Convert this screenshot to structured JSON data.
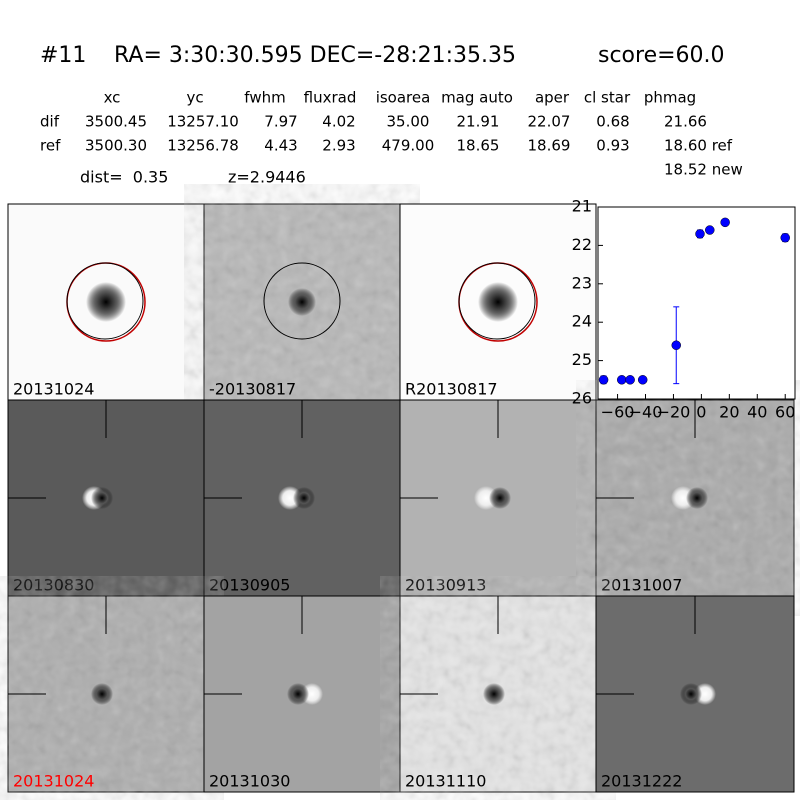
{
  "header": {
    "id": "#11",
    "coords": "RA= 3:30:30.595 DEC=-28:21:35.35",
    "score": "score=60.0"
  },
  "table": {
    "columns": [
      "xc",
      "yc",
      "fwhm",
      "fluxrad",
      "isoarea",
      "mag auto",
      "aper",
      "cl star",
      "phmag"
    ],
    "rows": [
      [
        "dif",
        "3500.45",
        "13257.10",
        "7.97",
        "4.02",
        "35.00",
        "21.91",
        "22.07",
        "0.68",
        "21.66"
      ],
      [
        "ref",
        "3500.30",
        "13256.78",
        "4.43",
        "2.93",
        "479.00",
        "18.65",
        "18.69",
        "0.93",
        "18.60 ref"
      ]
    ],
    "note": "18.52 new"
  },
  "distance": {
    "dist": "dist=  0.35",
    "redshift": "z=2.9446"
  },
  "stamps": [
    {
      "label": "20131024"
    },
    {
      "label": "-20130817"
    },
    {
      "label": "R20130817"
    },
    {
      "label": "20130830"
    },
    {
      "label": "20130905"
    },
    {
      "label": "20130913"
    },
    {
      "label": "20131007"
    },
    {
      "label": "20131024",
      "label_color": "#ff0000"
    },
    {
      "label": "20131030"
    },
    {
      "label": "20131110"
    },
    {
      "label": "20131222"
    }
  ],
  "chart_data": {
    "type": "scatter",
    "x": [
      -70,
      -57,
      -51,
      -42,
      -18,
      -1,
      6,
      17,
      60
    ],
    "values": [
      25.5,
      25.5,
      25.5,
      25.5,
      24.6,
      21.7,
      21.6,
      21.4,
      21.8
    ],
    "errors": [
      0.1,
      0.05,
      0.05,
      0.05,
      1.0,
      0.1,
      0.05,
      0.05,
      0.1
    ],
    "color": "#0000ff",
    "xlim": [
      -74,
      67
    ],
    "ylim": [
      26,
      21
    ],
    "xticks": [
      {
        "value": -60,
        "label": "−60"
      },
      {
        "value": -40,
        "label": "−40"
      },
      {
        "value": -20,
        "label": "−20"
      },
      0,
      20,
      40,
      60
    ],
    "yticks": [
      21,
      22,
      23,
      24,
      25,
      26
    ]
  }
}
